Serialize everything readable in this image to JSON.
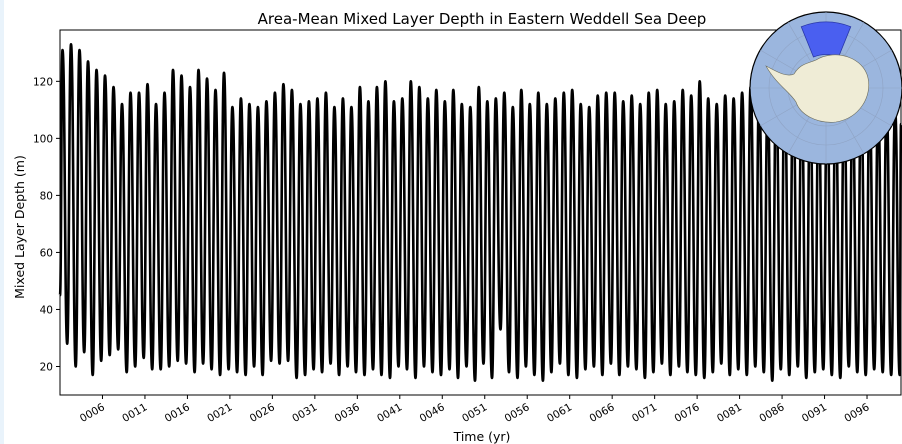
{
  "chart_data": {
    "type": "line",
    "title": "Area-Mean Mixed Layer Depth in Eastern Weddell Sea Deep",
    "xlabel": "Time (yr)",
    "ylabel": "Mixed Layer Depth (m)",
    "xlim": [
      1,
      100
    ],
    "ylim": [
      10,
      138
    ],
    "yticks": [
      20,
      40,
      60,
      80,
      100,
      120
    ],
    "xticks": [
      "0006",
      "0011",
      "0016",
      "0021",
      "0026",
      "0031",
      "0036",
      "0041",
      "0046",
      "0051",
      "0056",
      "0061",
      "0066",
      "0071",
      "0076",
      "0081",
      "0086",
      "0091",
      "0096"
    ],
    "xtick_values": [
      6,
      11,
      16,
      21,
      26,
      31,
      36,
      41,
      46,
      51,
      56,
      61,
      66,
      71,
      76,
      81,
      86,
      91,
      96
    ],
    "series": [
      {
        "color": "#000000",
        "annual_cycle": "seasonal oscillation, one peak and one trough per year",
        "peak_times": [
          1.3,
          2.3,
          3.3,
          4.3,
          5.3,
          6.3,
          7.3,
          8.3,
          9.3,
          10.3,
          11.3,
          12.3,
          13.3,
          14.3,
          15.3,
          16.3,
          17.3,
          18.3,
          19.3,
          20.3,
          21.3,
          22.3,
          23.3,
          24.3,
          25.3,
          26.3,
          27.3,
          28.3,
          29.3,
          30.3,
          31.3,
          32.3,
          33.3,
          34.3,
          35.3,
          36.3,
          37.3,
          38.3,
          39.3,
          40.3,
          41.3,
          42.3,
          43.3,
          44.3,
          45.3,
          46.3,
          47.3,
          48.3,
          49.3,
          50.3,
          51.3,
          52.3,
          53.3,
          54.3,
          55.3,
          56.3,
          57.3,
          58.3,
          59.3,
          60.3,
          61.3,
          62.3,
          63.3,
          64.3,
          65.3,
          66.3,
          67.3,
          68.3,
          69.3,
          70.3,
          71.3,
          72.3,
          73.3,
          74.3,
          75.3,
          76.3,
          77.3,
          78.3,
          79.3,
          80.3,
          81.3,
          82.3,
          83.3,
          84.3,
          85.3,
          86.3,
          87.3,
          88.3,
          89.3,
          90.3,
          91.3,
          92.3,
          93.3,
          94.3,
          95.3,
          96.3,
          97.3,
          98.3,
          99.3
        ],
        "peaks": [
          131,
          133,
          131,
          127,
          124,
          122,
          118,
          112,
          116,
          116,
          119,
          112,
          116,
          124,
          122,
          118,
          124,
          121,
          117,
          123,
          111,
          114,
          112,
          111,
          113,
          116,
          119,
          117,
          112,
          113,
          114,
          116,
          111,
          114,
          111,
          118,
          113,
          118,
          120,
          113,
          114,
          120,
          118,
          114,
          117,
          113,
          117,
          112,
          111,
          118,
          113,
          114,
          116,
          111,
          117,
          112,
          116,
          112,
          114,
          116,
          117,
          112,
          111,
          115,
          116,
          116,
          113,
          115,
          112,
          116,
          117,
          112,
          113,
          117,
          115,
          120,
          114,
          112,
          115,
          114,
          116,
          118,
          115,
          112,
          116,
          118,
          115,
          114,
          113,
          112,
          115,
          114,
          113,
          112,
          115,
          112,
          111,
          111,
          110
        ],
        "trough_times": [
          1.85,
          2.85,
          3.85,
          4.85,
          5.85,
          6.85,
          7.85,
          8.85,
          9.85,
          10.85,
          11.85,
          12.85,
          13.85,
          14.85,
          15.85,
          16.85,
          17.85,
          18.85,
          19.85,
          20.85,
          21.85,
          22.85,
          23.85,
          24.85,
          25.85,
          26.85,
          27.85,
          28.85,
          29.85,
          30.85,
          31.85,
          32.85,
          33.85,
          34.85,
          35.85,
          36.85,
          37.85,
          38.85,
          39.85,
          40.85,
          41.85,
          42.85,
          43.85,
          44.85,
          45.85,
          46.85,
          47.85,
          48.85,
          49.85,
          50.85,
          51.85,
          52.85,
          53.85,
          54.85,
          55.85,
          56.85,
          57.85,
          58.85,
          59.85,
          60.85,
          61.85,
          62.85,
          63.85,
          64.85,
          65.85,
          66.85,
          67.85,
          68.85,
          69.85,
          70.85,
          71.85,
          72.85,
          73.85,
          74.85,
          75.85,
          76.85,
          77.85,
          78.85,
          79.85,
          80.85,
          81.85,
          82.85,
          83.85,
          84.85,
          85.85,
          86.85,
          87.85,
          88.85,
          89.85,
          90.85,
          91.85,
          92.85,
          93.85,
          94.85,
          95.85,
          96.85,
          97.85,
          98.85,
          99.85
        ],
        "troughs": [
          28,
          20,
          25,
          17,
          22,
          24,
          26,
          18,
          20,
          23,
          19,
          19,
          20,
          22,
          21,
          18,
          21,
          19,
          17,
          19,
          18,
          17,
          20,
          17,
          22,
          21,
          22,
          16,
          17,
          19,
          18,
          21,
          17,
          20,
          18,
          17,
          19,
          17,
          16,
          20,
          19,
          16,
          20,
          18,
          17,
          19,
          16,
          20,
          15,
          21,
          16,
          33,
          18,
          16,
          20,
          17,
          15,
          18,
          21,
          17,
          16,
          19,
          20,
          17,
          21,
          17,
          20,
          19,
          16,
          18,
          21,
          17,
          20,
          18,
          17,
          16,
          18,
          21,
          17,
          19,
          17,
          20,
          18,
          15,
          19,
          17,
          20,
          16,
          18,
          19,
          17,
          16,
          20,
          18,
          17,
          19,
          18,
          17,
          17
        ]
      }
    ]
  },
  "inset_map": {
    "ocean_color": "#9bb6de",
    "land_color": "#efecd6",
    "region_color": "#4a5ff0"
  }
}
